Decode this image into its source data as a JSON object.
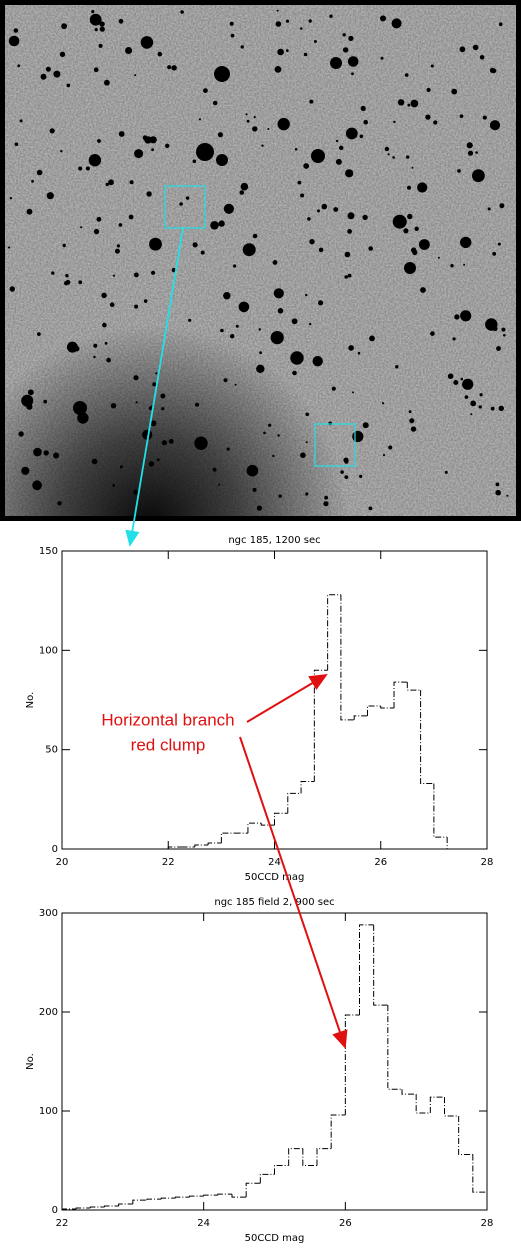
{
  "chart_data": [
    {
      "type": "histogram",
      "title": "ngc 185, 1200 sec",
      "x_label": "50CCD mag",
      "y_label": "No.",
      "bins": [
        22.0,
        22.25,
        22.5,
        22.75,
        23.0,
        23.25,
        23.5,
        23.75,
        24.0,
        24.25,
        24.5,
        24.75,
        25.0,
        25.25,
        25.5,
        25.75,
        26.0,
        26.25,
        26.5,
        26.75,
        27.0,
        27.25,
        27.5
      ],
      "values": [
        1,
        1,
        2,
        3,
        8,
        8,
        13,
        12,
        18,
        28,
        34,
        90,
        128,
        65,
        67,
        72,
        71,
        84,
        80,
        33,
        6,
        0
      ],
      "xlim": [
        20,
        28
      ],
      "ylim": [
        0,
        150
      ],
      "xticks": [
        20,
        22,
        24,
        26,
        28
      ],
      "yticks": [
        0,
        50,
        100,
        150
      ],
      "color": "#000000"
    },
    {
      "type": "histogram",
      "title": "ngc 185 field 2, 900 sec",
      "x_label": "50CCD mag",
      "y_label": "No.",
      "bins": [
        22.0,
        22.2,
        22.4,
        22.6,
        22.8,
        23.0,
        23.2,
        23.4,
        23.6,
        23.8,
        24.0,
        24.2,
        24.4,
        24.6,
        24.8,
        25.0,
        25.2,
        25.4,
        25.6,
        25.8,
        26.0,
        26.2,
        26.4,
        26.6,
        26.8,
        27.0,
        27.2,
        27.4,
        27.6,
        27.8,
        28.0
      ],
      "values": [
        1,
        2,
        3,
        4,
        6,
        10,
        11,
        12,
        13,
        14,
        15,
        16,
        13,
        27,
        36,
        45,
        62,
        45,
        62,
        96,
        197,
        288,
        207,
        122,
        117,
        98,
        114,
        95,
        56,
        18
      ],
      "xlim": [
        22,
        28
      ],
      "ylim": [
        0,
        300
      ],
      "xticks": [
        22,
        24,
        26,
        28
      ],
      "yticks": [
        0,
        100,
        200,
        300
      ],
      "color": "#000000"
    }
  ],
  "annotation": {
    "lines": [
      "Horizontal branch",
      "red clump"
    ]
  }
}
